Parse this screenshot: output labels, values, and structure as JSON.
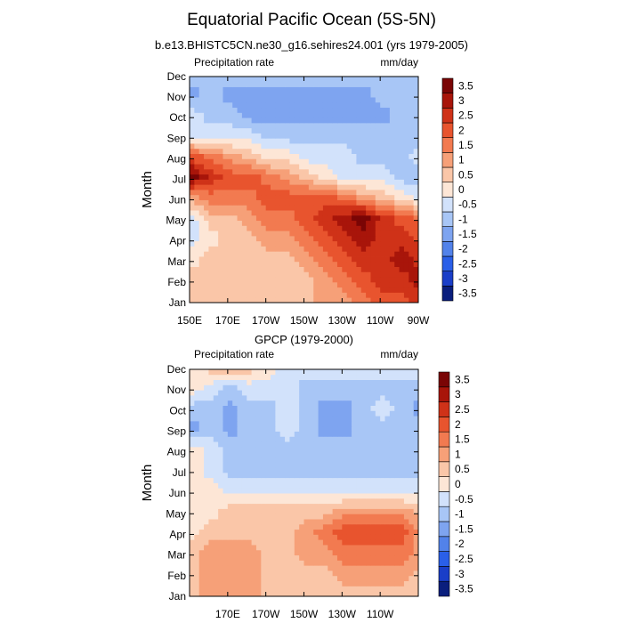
{
  "figure": {
    "title": "Equatorial Pacific Ocean (5S-5N)",
    "subtitle": "b.e13.BHISTC5CN.ne30_g16.sehires24.001 (yrs 1979-2005)"
  },
  "colorbar": {
    "colors": [
      "#0a1e7d",
      "#1a3ec8",
      "#2a5fe8",
      "#5282ea",
      "#7ea4f0",
      "#a8c6f6",
      "#d2e2fb",
      "#fde6d6",
      "#fac6a8",
      "#f6a078",
      "#f27a50",
      "#e8542e",
      "#cf3218",
      "#a8150a",
      "#7a0505"
    ],
    "labels": [
      "-3.5",
      "-3",
      "-2.5",
      "-2",
      "-1.5",
      "-1",
      "-0.5",
      "0",
      "0.5",
      "1",
      "1.5",
      "2",
      "2.5",
      "3",
      "3.5"
    ]
  },
  "chart_data": [
    {
      "type": "heatmap",
      "panel_title": "",
      "left_string": "Precipitation rate",
      "right_string": "mm/day",
      "ylabel": "Month",
      "xlabel": "",
      "x_tick_labels": [
        "150E",
        "170E",
        "170W",
        "150W",
        "130W",
        "110W",
        "90W"
      ],
      "x_ticks_deg": [
        150,
        170,
        190,
        210,
        230,
        250,
        270
      ],
      "x_range_deg": [
        150,
        270
      ],
      "y_tick_labels": [
        "Jan",
        "Feb",
        "Mar",
        "Apr",
        "May",
        "Jun",
        "Jul",
        "Aug",
        "Sep",
        "Oct",
        "Nov",
        "Dec"
      ],
      "x": [
        150,
        160,
        170,
        180,
        190,
        200,
        210,
        220,
        230,
        240,
        250,
        260,
        270
      ],
      "months": [
        "Jan",
        "Feb",
        "Mar",
        "Apr",
        "May",
        "Jun",
        "Jul",
        "Aug",
        "Sep",
        "Oct",
        "Nov",
        "Dec"
      ],
      "values": [
        [
          0.5,
          0.5,
          0.5,
          0.5,
          0.5,
          0.5,
          0.5,
          1.0,
          1.0,
          1.5,
          2.0,
          2.0,
          2.5
        ],
        [
          0.5,
          0.5,
          0.5,
          0.5,
          0.5,
          0.5,
          0.5,
          1.0,
          1.5,
          2.0,
          2.5,
          2.5,
          3.0
        ],
        [
          0.0,
          0.5,
          0.5,
          0.5,
          0.5,
          0.5,
          1.0,
          1.5,
          2.0,
          2.5,
          2.5,
          3.0,
          2.5
        ],
        [
          -0.5,
          0.0,
          0.5,
          0.5,
          1.0,
          1.0,
          1.5,
          2.0,
          2.5,
          3.0,
          2.5,
          2.5,
          2.0
        ],
        [
          -0.5,
          0.5,
          0.5,
          1.0,
          1.5,
          1.5,
          2.0,
          2.5,
          3.0,
          3.5,
          2.5,
          2.0,
          1.5
        ],
        [
          1.0,
          1.5,
          1.5,
          1.5,
          2.0,
          2.0,
          2.0,
          2.0,
          1.5,
          1.0,
          0.5,
          0.0,
          -0.5
        ],
        [
          3.5,
          2.5,
          2.0,
          2.0,
          1.5,
          1.0,
          0.5,
          0.0,
          -0.5,
          -0.5,
          -0.5,
          -1.0,
          -1.0
        ],
        [
          2.0,
          1.5,
          1.0,
          0.5,
          0.0,
          0.0,
          -0.5,
          -0.5,
          -0.5,
          -1.0,
          -1.0,
          -1.0,
          -0.5
        ],
        [
          -0.5,
          -0.5,
          -0.5,
          -0.5,
          -1.0,
          -1.0,
          -1.0,
          -1.0,
          -1.0,
          -1.0,
          -1.0,
          -1.0,
          -1.0
        ],
        [
          -0.5,
          -1.0,
          -1.0,
          -1.5,
          -1.5,
          -1.5,
          -1.5,
          -1.5,
          -1.5,
          -1.5,
          -1.5,
          -1.0,
          -1.0
        ],
        [
          -1.5,
          -1.0,
          -1.5,
          -1.5,
          -1.5,
          -1.5,
          -1.5,
          -1.5,
          -1.5,
          -1.5,
          -1.0,
          -1.0,
          -1.0
        ],
        [
          -1.0,
          -1.0,
          -1.0,
          -1.0,
          -1.0,
          -1.0,
          -1.0,
          -1.0,
          -1.0,
          -1.0,
          -1.0,
          -1.0,
          -1.0
        ]
      ],
      "colorbar_levels": [
        -3.5,
        -3,
        -2.5,
        -2,
        -1.5,
        -1,
        -0.5,
        0,
        0.5,
        1,
        1.5,
        2,
        2.5,
        3,
        3.5
      ]
    },
    {
      "type": "heatmap",
      "panel_title": "GPCP (1979-2000)",
      "left_string": "Precipitation rate",
      "right_string": "mm/day",
      "ylabel": "Month",
      "xlabel": "",
      "x_tick_labels": [
        "170E",
        "170W",
        "150W",
        "130W",
        "110W"
      ],
      "x_ticks_deg": [
        170,
        190,
        210,
        230,
        250
      ],
      "x_range_deg": [
        150,
        270
      ],
      "y_tick_labels": [
        "Jan",
        "Feb",
        "Mar",
        "Apr",
        "May",
        "Jun",
        "Jul",
        "Aug",
        "Sep",
        "Oct",
        "Nov",
        "Dec"
      ],
      "x": [
        150,
        160,
        170,
        180,
        190,
        200,
        210,
        220,
        230,
        240,
        250,
        260,
        270
      ],
      "months": [
        "Jan",
        "Feb",
        "Mar",
        "Apr",
        "May",
        "Jun",
        "Jul",
        "Aug",
        "Sep",
        "Oct",
        "Nov",
        "Dec"
      ],
      "values": [
        [
          0.5,
          1.0,
          1.0,
          1.0,
          0.5,
          0.5,
          0.5,
          0.5,
          0.5,
          0.5,
          0.5,
          0.5,
          0.5
        ],
        [
          0.5,
          1.0,
          1.0,
          1.0,
          0.5,
          0.5,
          0.5,
          0.5,
          1.0,
          1.0,
          1.0,
          1.0,
          0.5
        ],
        [
          0.5,
          1.0,
          1.0,
          1.0,
          0.5,
          0.5,
          1.0,
          1.0,
          1.5,
          1.5,
          1.5,
          1.5,
          1.0
        ],
        [
          0.0,
          0.5,
          0.5,
          0.5,
          0.5,
          0.5,
          1.0,
          1.5,
          2.0,
          2.0,
          2.0,
          2.0,
          1.0
        ],
        [
          0.0,
          0.0,
          0.5,
          0.5,
          0.5,
          0.5,
          0.5,
          0.5,
          1.0,
          1.0,
          1.0,
          1.0,
          0.5
        ],
        [
          0.0,
          0.0,
          -0.5,
          -0.5,
          -0.5,
          -0.5,
          -0.5,
          -0.5,
          -0.5,
          -0.5,
          -0.5,
          -0.5,
          -0.5
        ],
        [
          0.0,
          -0.5,
          -1.0,
          -1.0,
          -1.0,
          -1.0,
          -1.0,
          -1.0,
          -1.0,
          -1.0,
          -1.0,
          -1.0,
          -1.0
        ],
        [
          0.0,
          -0.5,
          -1.0,
          -1.0,
          -1.0,
          -1.0,
          -1.0,
          -1.0,
          -1.0,
          -1.0,
          -1.0,
          -1.0,
          -1.0
        ],
        [
          -1.5,
          -1.0,
          -1.5,
          -1.0,
          -1.0,
          -0.5,
          -1.0,
          -1.5,
          -1.5,
          -1.0,
          -1.0,
          -1.0,
          -1.0
        ],
        [
          -1.0,
          -1.0,
          -1.5,
          -1.0,
          -1.0,
          -0.5,
          -1.0,
          -1.5,
          -1.5,
          -1.0,
          -0.5,
          -1.0,
          -1.5
        ],
        [
          0.0,
          -0.5,
          -1.0,
          -0.5,
          -0.5,
          -0.5,
          -1.0,
          -1.0,
          -1.0,
          -1.0,
          -1.0,
          -1.0,
          -1.0
        ],
        [
          0.0,
          0.5,
          1.0,
          0.5,
          0.0,
          -0.5,
          -0.5,
          -0.5,
          -0.5,
          -0.5,
          -0.5,
          -0.5,
          -0.5
        ]
      ],
      "colorbar_levels": [
        -3.5,
        -3,
        -2.5,
        -2,
        -1.5,
        -1,
        -0.5,
        0,
        0.5,
        1,
        1.5,
        2,
        2.5,
        3,
        3.5
      ]
    }
  ]
}
